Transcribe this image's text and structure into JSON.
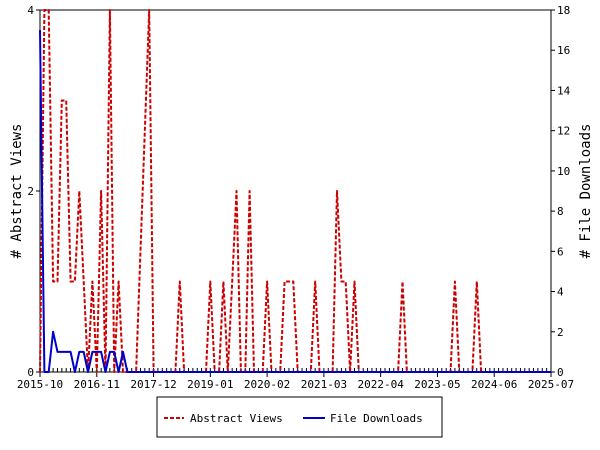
{
  "chart_data": {
    "type": "line",
    "ylabel_left": "# Abstract Views",
    "ylabel_right": "# File Downloads",
    "xlabel": "",
    "x_tick_labels": [
      "2015-10",
      "2016-11",
      "2017-12",
      "2019-01",
      "2020-02",
      "2021-03",
      "2022-04",
      "2023-05",
      "2024-06",
      "2025-07"
    ],
    "x_range_months": [
      0,
      117
    ],
    "ylim_left": [
      0,
      4
    ],
    "ylim_right": [
      0,
      18
    ],
    "y_ticks_left": [
      "0",
      "2",
      "4"
    ],
    "y_ticks_right": [
      "0",
      "2",
      "4",
      "6",
      "8",
      "10",
      "12",
      "14",
      "16",
      "18"
    ],
    "grid": false,
    "legend_position": "bottom-center",
    "series": [
      {
        "name": "Abstract Views",
        "axis": "left",
        "color": "#cc0000",
        "style": "dashed",
        "points": [
          [
            0,
            0
          ],
          [
            1,
            4
          ],
          [
            2,
            4
          ],
          [
            3,
            1
          ],
          [
            4,
            1
          ],
          [
            5,
            3
          ],
          [
            6,
            3
          ],
          [
            7,
            1
          ],
          [
            8,
            1
          ],
          [
            9,
            2
          ],
          [
            10,
            1
          ],
          [
            11,
            0
          ],
          [
            12,
            1
          ],
          [
            13,
            0
          ],
          [
            14,
            2
          ],
          [
            15,
            0
          ],
          [
            16,
            4
          ],
          [
            17,
            0
          ],
          [
            18,
            1
          ],
          [
            19,
            0
          ],
          [
            20,
            0
          ],
          [
            22,
            0
          ],
          [
            25,
            4
          ],
          [
            26,
            0
          ],
          [
            27,
            0
          ],
          [
            31,
            0
          ],
          [
            32,
            1
          ],
          [
            33,
            0
          ],
          [
            38,
            0
          ],
          [
            39,
            1
          ],
          [
            40,
            0
          ],
          [
            41,
            0
          ],
          [
            42,
            1
          ],
          [
            43,
            0
          ],
          [
            44,
            1
          ],
          [
            45,
            2
          ],
          [
            46,
            0
          ],
          [
            47,
            0
          ],
          [
            48,
            2
          ],
          [
            49,
            0
          ],
          [
            51,
            0
          ],
          [
            52,
            1
          ],
          [
            53,
            0
          ],
          [
            55,
            0
          ],
          [
            56,
            1
          ],
          [
            57,
            1
          ],
          [
            58,
            1
          ],
          [
            59,
            0
          ],
          [
            62,
            0
          ],
          [
            63,
            1
          ],
          [
            64,
            0
          ],
          [
            67,
            0
          ],
          [
            68,
            2
          ],
          [
            69,
            1
          ],
          [
            70,
            1
          ],
          [
            71,
            0
          ],
          [
            72,
            1
          ],
          [
            73,
            0
          ],
          [
            82,
            0
          ],
          [
            83,
            1
          ],
          [
            84,
            0
          ],
          [
            94,
            0
          ],
          [
            95,
            1
          ],
          [
            96,
            0
          ],
          [
            99,
            0
          ],
          [
            100,
            1
          ],
          [
            101,
            0
          ],
          [
            117,
            0
          ]
        ]
      },
      {
        "name": "File Downloads",
        "axis": "right",
        "color": "#0000cc",
        "style": "solid",
        "points": [
          [
            0,
            17
          ],
          [
            1,
            0
          ],
          [
            2,
            0
          ],
          [
            3,
            2
          ],
          [
            4,
            1
          ],
          [
            5,
            1
          ],
          [
            6,
            1
          ],
          [
            7,
            1
          ],
          [
            8,
            0
          ],
          [
            9,
            1
          ],
          [
            10,
            1
          ],
          [
            11,
            0
          ],
          [
            12,
            1
          ],
          [
            13,
            1
          ],
          [
            14,
            1
          ],
          [
            15,
            0
          ],
          [
            16,
            1
          ],
          [
            17,
            1
          ],
          [
            18,
            0
          ],
          [
            19,
            1
          ],
          [
            20,
            0
          ],
          [
            117,
            0
          ]
        ]
      }
    ]
  }
}
